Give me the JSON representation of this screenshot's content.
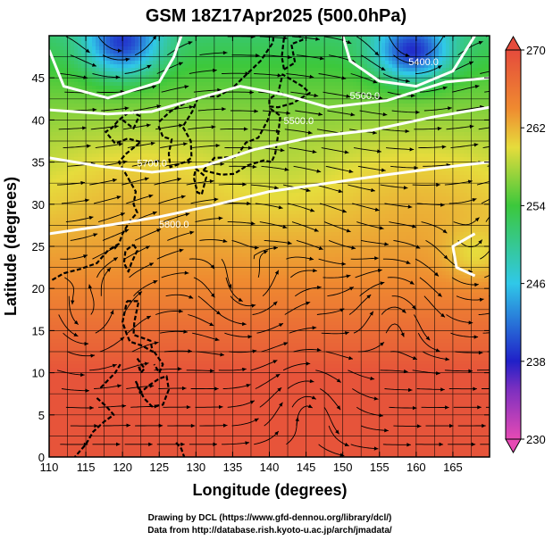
{
  "chart_data": {
    "type": "heatmap",
    "title": "GSM 18Z17Apr2025 (500.0hPa)",
    "xlabel": "Longitude (degrees)",
    "ylabel": "Latitude  (degrees)",
    "xlim": [
      110,
      170
    ],
    "ylim": [
      0,
      50
    ],
    "xticks": [
      110,
      115,
      120,
      125,
      130,
      135,
      140,
      145,
      150,
      155,
      160,
      165
    ],
    "yticks": [
      0,
      5,
      10,
      15,
      20,
      25,
      30,
      35,
      40,
      45
    ],
    "grid": true,
    "colorbar": {
      "min": 230,
      "max": 270,
      "ticks": [
        230,
        238,
        246,
        254,
        262,
        270
      ],
      "colors": [
        "#e64ab4",
        "#2020c8",
        "#30c8e8",
        "#3cc83c",
        "#e6dc3c",
        "#ef8a30",
        "#e54b3c"
      ]
    },
    "contour_labels": [
      {
        "text": "5500.0",
        "lon": 144,
        "lat": 39.5
      },
      {
        "text": "5500.0",
        "lon": 153,
        "lat": 42.5
      },
      {
        "text": "5700.0",
        "lon": 124,
        "lat": 34.5
      },
      {
        "text": "5800.0",
        "lon": 127,
        "lat": 27.2
      },
      {
        "text": "5400.0",
        "lon": 161,
        "lat": 46.5
      }
    ]
  },
  "footer": {
    "line1": "Drawing by DCL (https://www.gfd-dennou.org/library/dcl/)",
    "line2": "Data from http://database.rish.kyoto-u.ac.jp/arch/jmadata/"
  }
}
